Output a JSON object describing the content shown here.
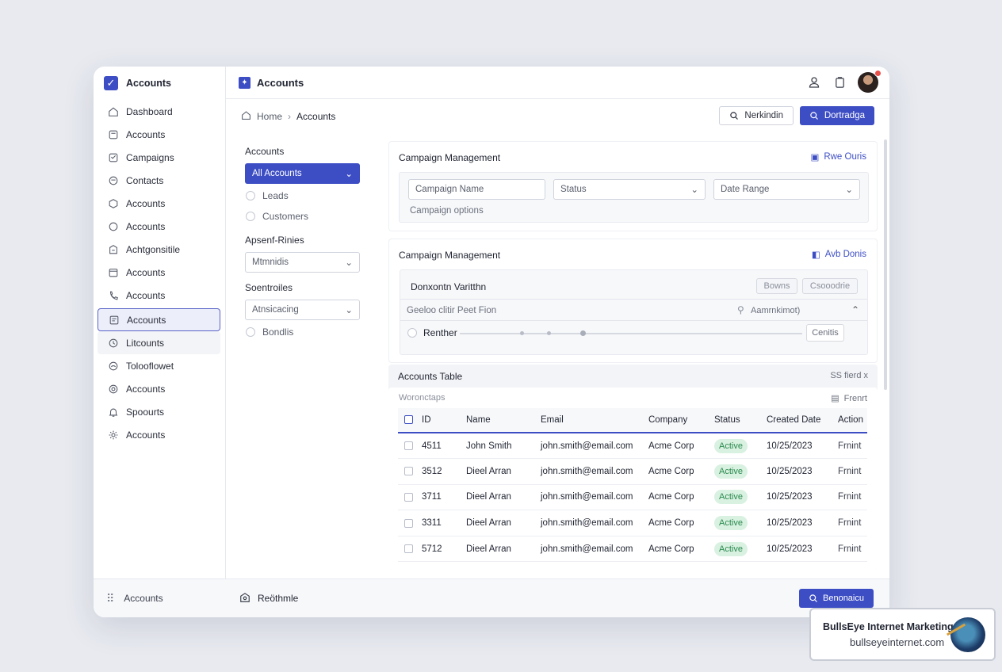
{
  "app": {
    "brand": "Accounts",
    "header_title": "Accounts"
  },
  "sidebar": {
    "items": [
      {
        "label": "Dashboard",
        "icon": "home-icon"
      },
      {
        "label": "Accounts",
        "icon": "accounts-icon"
      },
      {
        "label": "Campaigns",
        "icon": "campaigns-icon"
      },
      {
        "label": "Contacts",
        "icon": "contacts-icon"
      },
      {
        "label": "Accounts",
        "icon": "box-icon"
      },
      {
        "label": "Accounts",
        "icon": "chat-icon"
      },
      {
        "label": "Achtgonsitile",
        "icon": "document-icon"
      },
      {
        "label": "Accounts",
        "icon": "calendar-icon"
      },
      {
        "label": "Accounts",
        "icon": "phone-icon"
      },
      {
        "label": "Accounts",
        "icon": "list-icon"
      },
      {
        "label": "Litcounts",
        "icon": "clock-icon"
      },
      {
        "label": "Tolooflowet",
        "icon": "flow-icon"
      },
      {
        "label": "Accounts",
        "icon": "target-icon"
      },
      {
        "label": "Spoourts",
        "icon": "bell-icon"
      },
      {
        "label": "Accounts",
        "icon": "gear-icon"
      }
    ],
    "active_index": 9,
    "footer_label": "Accounts"
  },
  "breadcrumb": {
    "home": "Home",
    "current": "Accounts"
  },
  "toolbar": {
    "secondary_label": "Nerkindin",
    "primary_label": "Dortradga"
  },
  "filters": {
    "group1_label": "Accounts",
    "selected": "All Accounts",
    "options": [
      "Leads",
      "Customers"
    ],
    "group2_label": "Apsenf-Rinies",
    "group2_select": "Mtmnidis",
    "group3_label": "Soentroiles",
    "group3_select": "Atnsicacing",
    "group3_option": "Bondlis"
  },
  "campaign1": {
    "title": "Campaign Management",
    "link": "Rwe Ouris",
    "name_placeholder": "Campaign Name",
    "status": "Status",
    "date_range": "Date Range",
    "options_label": "Campaign options"
  },
  "campaign2": {
    "title": "Campaign Management",
    "link": "Avb Donis",
    "section_title": "Donxontn Varitthn",
    "btn1": "Bowns",
    "btn2": "Csooodrie",
    "row_label": "Geeloo clitir Peet Fion",
    "row_right": "Aamrnkimot)",
    "radio_label": "Renther",
    "small_button": "Cenitis"
  },
  "table": {
    "title": "Accounts Table",
    "meta": "SS fierd x",
    "sub_left": "Woronctaps",
    "sub_right": "Frenrt",
    "columns": [
      "ID",
      "Name",
      "Email",
      "Company",
      "Status",
      "Created Date",
      "Action"
    ],
    "rows": [
      {
        "id": "4511",
        "name": "John Smith",
        "email": "john.smith@email.com",
        "company": "Acme Corp",
        "status": "Active",
        "date": "10/25/2023",
        "action": "Frnint"
      },
      {
        "id": "3512",
        "name": "Dieel Arran",
        "email": "john.smith@email.com",
        "company": "Acme Corp",
        "status": "Active",
        "date": "10/25/2023",
        "action": "Frnint"
      },
      {
        "id": "3711",
        "name": "Dieel Arran",
        "email": "john.smith@email.com",
        "company": "Acme Corp",
        "status": "Active",
        "date": "10/25/2023",
        "action": "Frnint"
      },
      {
        "id": "3311",
        "name": "Dieel Arran",
        "email": "john.smith@email.com",
        "company": "Acme Corp",
        "status": "Active",
        "date": "10/25/2023",
        "action": "Frnint"
      },
      {
        "id": "5712",
        "name": "Dieel Arran",
        "email": "john.smith@email.com",
        "company": "Acme Corp",
        "status": "Active",
        "date": "10/25/2023",
        "action": "Frnint"
      }
    ]
  },
  "bottom": {
    "left_label": "Reöthmle",
    "primary_label": "Benonaicu"
  },
  "watermark": {
    "name": "BullsEye Internet Marketing",
    "url": "bullseyeinternet.com"
  },
  "colors": {
    "accent": "#3d4ec4",
    "active_badge_bg": "#d9f1e1",
    "active_badge_text": "#2a8a4e"
  }
}
